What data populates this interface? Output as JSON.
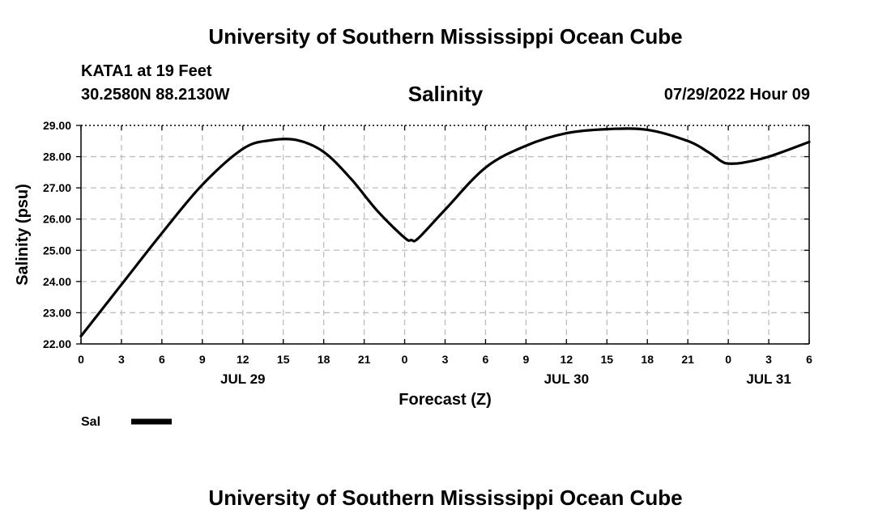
{
  "header": {
    "title": "University of Southern Mississippi Ocean Cube",
    "station": "KATA1 at 19 Feet",
    "coords": "30.2580N  88.2130W",
    "plot_title": "Salinity",
    "timestamp": "07/29/2022 Hour 09"
  },
  "footer": {
    "title": "University of Southern Mississippi Ocean Cube"
  },
  "chart_data": {
    "type": "line",
    "xlabel": "Forecast (Z)",
    "ylabel": "Salinity (psu)",
    "ylim": [
      22.0,
      29.0
    ],
    "yticks": [
      "22.00",
      "23.00",
      "24.00",
      "25.00",
      "26.00",
      "27.00",
      "28.00",
      "29.00"
    ],
    "xlim": [
      0,
      54
    ],
    "xtick_values": [
      0,
      3,
      6,
      9,
      12,
      15,
      18,
      21,
      24,
      27,
      30,
      33,
      36,
      39,
      42,
      45,
      48,
      51,
      54
    ],
    "xtick_labels": [
      "0",
      "3",
      "6",
      "9",
      "12",
      "15",
      "18",
      "21",
      "0",
      "3",
      "6",
      "9",
      "12",
      "15",
      "18",
      "21",
      "0",
      "3",
      "6"
    ],
    "day_labels": [
      {
        "label": "JUL 29",
        "x": 12
      },
      {
        "label": "JUL 30",
        "x": 36
      },
      {
        "label": "JUL 31",
        "x": 51
      }
    ],
    "grid": true,
    "series": [
      {
        "name": "Sal",
        "color": "#000000",
        "x": [
          0,
          3,
          6,
          9,
          12,
          14,
          16,
          18,
          20,
          22,
          24,
          24.5,
          25,
          27,
          30,
          33,
          36,
          39,
          42,
          45,
          46.5,
          47.5,
          48,
          49,
          51,
          54
        ],
        "y": [
          22.25,
          23.9,
          25.55,
          27.1,
          28.25,
          28.52,
          28.53,
          28.15,
          27.3,
          26.25,
          25.4,
          25.33,
          25.38,
          26.3,
          27.65,
          28.35,
          28.75,
          28.88,
          28.86,
          28.5,
          28.15,
          27.85,
          27.78,
          27.8,
          28.0,
          28.47
        ]
      }
    ],
    "legend": {
      "placement": "bottom-left",
      "label": "Sal"
    }
  }
}
